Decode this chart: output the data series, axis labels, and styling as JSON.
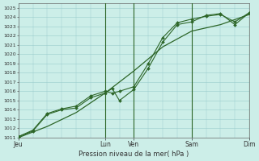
{
  "background_color": "#cceee8",
  "grid_color": "#99cccc",
  "line_color": "#2d6628",
  "marker_color": "#2d6628",
  "xlabel": "Pression niveau de la mer( hPa )",
  "ylim": [
    1011,
    1025.5
  ],
  "yticks": [
    1011,
    1012,
    1013,
    1014,
    1015,
    1016,
    1017,
    1018,
    1019,
    1020,
    1021,
    1022,
    1023,
    1024,
    1025
  ],
  "xtick_labels": [
    "Jeu",
    "Lun",
    "Ven",
    "Sam",
    "Dim"
  ],
  "xtick_positions": [
    0,
    36,
    48,
    72,
    96
  ],
  "xlim": [
    0,
    96
  ],
  "vline_positions": [
    36,
    48,
    72,
    96
  ],
  "series1_x": [
    0,
    6,
    12,
    18,
    24,
    30,
    36,
    39,
    42,
    48,
    54,
    60,
    66,
    72,
    78,
    84,
    90,
    96
  ],
  "series1_y": [
    1011.1,
    1011.7,
    1013.5,
    1014.0,
    1014.2,
    1015.3,
    1015.8,
    1016.3,
    1015.0,
    1016.2,
    1018.5,
    1021.3,
    1023.2,
    1023.5,
    1024.2,
    1024.4,
    1023.2,
    1024.5
  ],
  "series2_x": [
    0,
    6,
    12,
    18,
    24,
    30,
    36,
    39,
    42,
    48,
    54,
    60,
    66,
    72,
    78,
    84,
    90,
    96
  ],
  "series2_y": [
    1011.1,
    1011.8,
    1013.6,
    1014.1,
    1014.4,
    1015.5,
    1016.0,
    1015.8,
    1016.0,
    1016.5,
    1019.0,
    1021.8,
    1023.4,
    1023.8,
    1024.1,
    1024.3,
    1023.5,
    1024.5
  ],
  "series3_x": [
    0,
    12,
    24,
    36,
    48,
    60,
    72,
    84,
    96
  ],
  "series3_y": [
    1011.0,
    1012.2,
    1013.7,
    1015.8,
    1018.2,
    1020.8,
    1022.5,
    1023.2,
    1024.3
  ],
  "figsize": [
    3.2,
    2.0
  ],
  "dpi": 100
}
